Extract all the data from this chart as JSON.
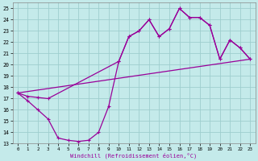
{
  "xlabel": "Windchill (Refroidissement éolien,°C)",
  "background_color": "#c4eaea",
  "grid_color": "#9ecece",
  "line_color": "#990099",
  "xlim": [
    -0.5,
    23.5
  ],
  "ylim": [
    13,
    25.5
  ],
  "xticks": [
    0,
    1,
    2,
    3,
    4,
    5,
    6,
    7,
    8,
    9,
    10,
    11,
    12,
    13,
    14,
    15,
    16,
    17,
    18,
    19,
    20,
    21,
    22,
    23
  ],
  "yticks": [
    13,
    14,
    15,
    16,
    17,
    18,
    19,
    20,
    21,
    22,
    23,
    24,
    25
  ],
  "curve1_x": [
    0,
    1,
    2,
    3,
    4,
    5,
    6,
    7,
    8,
    9,
    10,
    11,
    12,
    13,
    14,
    15,
    16,
    17,
    18,
    19,
    20,
    21,
    22,
    23
  ],
  "curve1_y": [
    17.5,
    16.8,
    16.0,
    15.2,
    13.5,
    13.3,
    13.2,
    13.3,
    14.0,
    16.3,
    20.3,
    22.5,
    23.0,
    24.0,
    22.5,
    23.2,
    25.0,
    24.2,
    24.2,
    23.5,
    20.5,
    22.2,
    21.5,
    20.5
  ],
  "curve2_x": [
    0,
    1,
    2,
    3,
    10,
    11,
    12,
    13,
    14,
    15,
    16,
    17,
    18,
    19,
    20,
    21,
    22,
    23
  ],
  "curve2_y": [
    17.5,
    17.2,
    17.1,
    17.0,
    20.3,
    22.5,
    23.0,
    24.0,
    22.5,
    23.2,
    25.0,
    24.2,
    24.2,
    23.5,
    20.5,
    22.2,
    21.5,
    20.5
  ],
  "curve3_x": [
    0,
    23
  ],
  "curve3_y": [
    17.5,
    20.5
  ],
  "figwidth": 3.2,
  "figheight": 2.0,
  "dpi": 100
}
